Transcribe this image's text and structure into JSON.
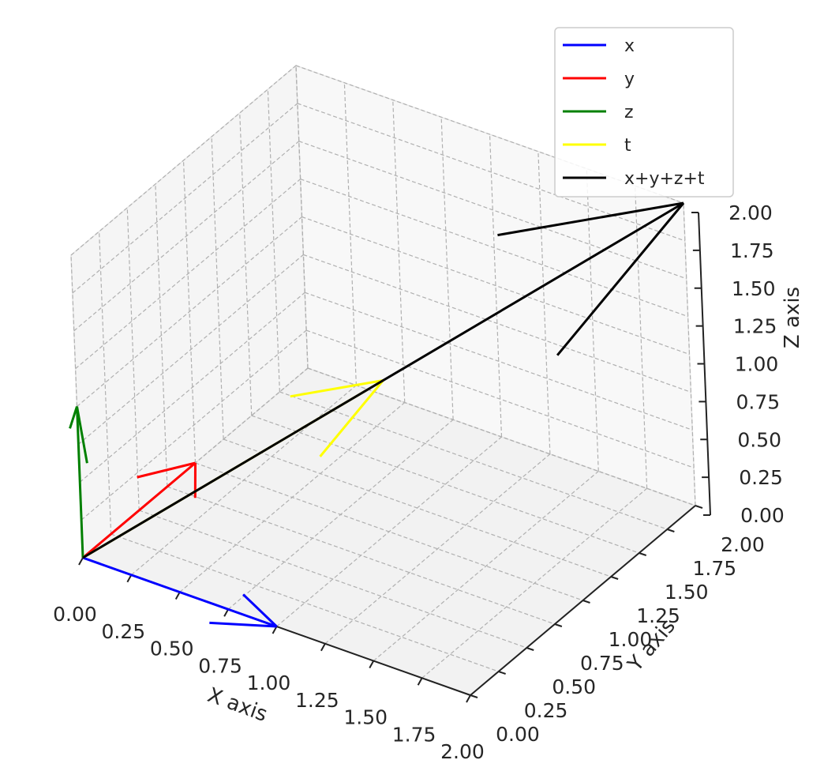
{
  "chart_data": {
    "type": "quiver3d",
    "xlabel": "X axis",
    "ylabel": "Y axis",
    "zlabel": "Z axis",
    "xlim": [
      0,
      2
    ],
    "ylim": [
      0,
      2
    ],
    "zlim": [
      0,
      2
    ],
    "xticks": [
      "0.00",
      "0.25",
      "0.50",
      "0.75",
      "1.00",
      "1.25",
      "1.50",
      "1.75",
      "2.00"
    ],
    "yticks": [
      "0.00",
      "0.25",
      "0.50",
      "0.75",
      "1.00",
      "1.25",
      "1.50",
      "1.75",
      "2.00"
    ],
    "zticks": [
      "0.00",
      "0.25",
      "0.50",
      "0.75",
      "1.00",
      "1.25",
      "1.50",
      "1.75",
      "2.00"
    ],
    "grid": true,
    "legend": "top-right",
    "series": [
      {
        "name": "x",
        "color": "#0000ff",
        "origin": [
          0,
          0,
          0
        ],
        "vector": [
          1,
          0,
          0
        ]
      },
      {
        "name": "y",
        "color": "#ff0000",
        "origin": [
          0,
          0,
          0
        ],
        "vector": [
          0,
          1,
          0
        ]
      },
      {
        "name": "z",
        "color": "#008000",
        "origin": [
          0,
          0,
          0
        ],
        "vector": [
          0,
          0,
          1
        ]
      },
      {
        "name": "t",
        "color": "#ffff00",
        "origin": [
          0,
          0,
          0
        ],
        "vector": [
          1,
          1,
          1
        ]
      },
      {
        "name": "x+y+z+t",
        "color": "#000000",
        "origin": [
          0,
          0,
          0
        ],
        "vector": [
          2,
          2,
          2
        ]
      }
    ]
  }
}
